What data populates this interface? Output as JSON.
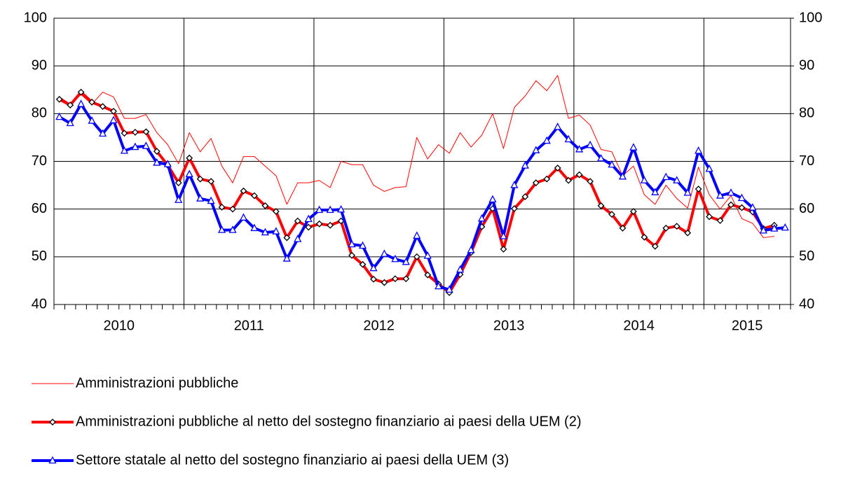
{
  "chart_data": {
    "type": "line",
    "categories": [
      null,
      null,
      null,
      null,
      null,
      null,
      "2010",
      null,
      null,
      null,
      null,
      null,
      null,
      null,
      null,
      null,
      null,
      null,
      "2011",
      null,
      null,
      null,
      null,
      null,
      null,
      null,
      null,
      null,
      null,
      null,
      "2012",
      null,
      null,
      null,
      null,
      null,
      null,
      null,
      null,
      null,
      null,
      null,
      "2013",
      null,
      null,
      null,
      null,
      null,
      null,
      null,
      null,
      null,
      null,
      null,
      "2014",
      null,
      null,
      null,
      null,
      null,
      null,
      null,
      null,
      null,
      "2015",
      null,
      null,
      null
    ],
    "series": [
      {
        "name": "Amministrazioni pubbliche",
        "color": "#ff0000",
        "marker": "none",
        "width": 1,
        "values": [
          83.5,
          82.0,
          84.0,
          82.0,
          84.5,
          83.5,
          79.0,
          79.0,
          79.8,
          76.0,
          73.5,
          69.5,
          76.0,
          72.0,
          74.8,
          69.0,
          65.5,
          71.0,
          71.0,
          69.0,
          67.0,
          61.0,
          65.5,
          65.5,
          66.0,
          64.5,
          70.0,
          69.3,
          69.3,
          65.0,
          63.7,
          64.5,
          64.7,
          75.0,
          70.5,
          73.5,
          71.7,
          76.0,
          73.0,
          75.5,
          80.0,
          72.7,
          81.3,
          83.7,
          86.9,
          84.8,
          88.0,
          79.0,
          79.7,
          77.6,
          72.5,
          72.0,
          67.0,
          69.0,
          63.0,
          61.0,
          65.0,
          62.2,
          60.2,
          68.8,
          63.0,
          60.0,
          62.8,
          58.0,
          57.0,
          54.0,
          54.3,
          null
        ]
      },
      {
        "name": "Amministrazioni pubbliche al netto del sostegno finanziario ai paesi della UEM (2)",
        "color": "#ff0000",
        "marker": "diamond",
        "width": 4,
        "values": [
          83.0,
          81.8,
          84.5,
          82.4,
          81.5,
          80.5,
          75.9,
          76.1,
          76.2,
          72.1,
          69.2,
          65.5,
          70.7,
          66.3,
          65.8,
          60.4,
          60.0,
          63.8,
          62.8,
          60.7,
          59.5,
          54.0,
          57.5,
          56.2,
          56.9,
          56.6,
          57.5,
          50.3,
          48.4,
          45.3,
          44.6,
          45.4,
          45.4,
          50.0,
          46.2,
          44.3,
          42.5,
          46.3,
          50.9,
          56.3,
          60.1,
          51.6,
          60.1,
          62.6,
          65.5,
          66.3,
          68.6,
          66.0,
          67.2,
          65.8,
          60.7,
          58.9,
          56.0,
          59.5,
          54.1,
          52.2,
          56.0,
          56.4,
          55.0,
          64.2,
          58.4,
          57.6,
          60.9,
          60.3,
          59.4,
          55.9,
          56.6,
          null
        ]
      },
      {
        "name": "Settore statale al netto del sostegno finanziario ai paesi della UEM (3)",
        "color": "#0000ff",
        "marker": "triangle",
        "width": 4,
        "values": [
          79.3,
          78.0,
          82.0,
          78.5,
          75.8,
          78.6,
          72.2,
          73.0,
          73.2,
          69.7,
          69.4,
          61.9,
          67.3,
          62.2,
          61.7,
          55.6,
          55.6,
          58.2,
          56.0,
          55.1,
          55.3,
          49.6,
          53.7,
          57.9,
          59.8,
          59.8,
          59.9,
          52.6,
          52.3,
          47.6,
          50.6,
          49.5,
          48.9,
          54.4,
          50.2,
          43.8,
          43.1,
          47.3,
          51.4,
          58.0,
          62.0,
          54.3,
          65.0,
          69.1,
          72.3,
          74.3,
          77.2,
          74.6,
          72.5,
          73.4,
          70.6,
          69.3,
          66.8,
          72.9,
          66.0,
          63.5,
          66.7,
          66.0,
          63.4,
          72.2,
          68.4,
          62.8,
          63.4,
          62.3,
          60.3,
          55.5,
          55.9,
          56.1
        ]
      }
    ],
    "ylim": [
      40,
      100
    ],
    "yticks": [
      40,
      50,
      60,
      70,
      80,
      90,
      100
    ],
    "y2lim": [
      40,
      100
    ],
    "y2ticks": [
      40,
      50,
      60,
      70,
      80,
      90,
      100
    ],
    "grid": true
  }
}
